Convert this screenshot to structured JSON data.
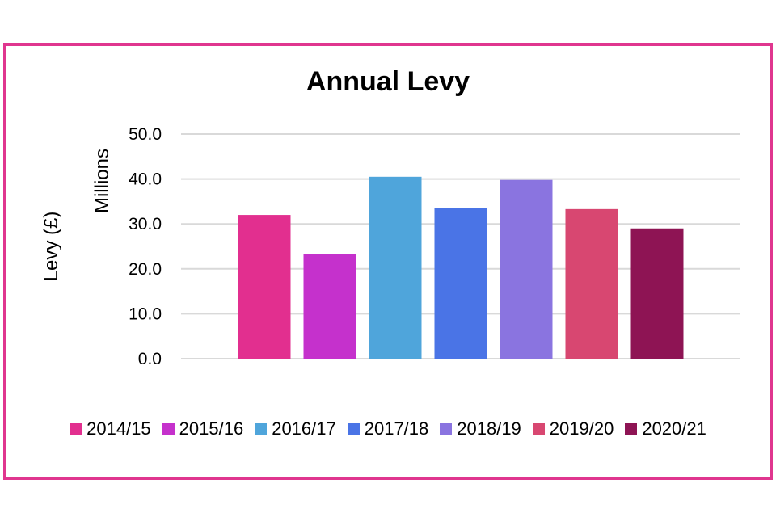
{
  "chart_data": {
    "type": "bar",
    "title": "Annual Levy",
    "ylabel": "Levy (£)",
    "yunit_label": "Millions",
    "xlabel": "",
    "ylim": [
      0,
      50
    ],
    "yticks": [
      "0.0",
      "10.0",
      "20.0",
      "30.0",
      "40.0",
      "50.0"
    ],
    "ytick_values": [
      0,
      10,
      20,
      30,
      40,
      50
    ],
    "grid": true,
    "legend_position": "bottom",
    "categories": [
      "2014/15",
      "2015/16",
      "2016/17",
      "2017/18",
      "2018/19",
      "2019/20",
      "2020/21"
    ],
    "values": [
      32.0,
      23.2,
      40.5,
      33.5,
      39.8,
      33.3,
      29.0
    ],
    "colors": [
      "#e22f8f",
      "#c531cc",
      "#4fa5db",
      "#4a74e6",
      "#8a74e0",
      "#d84771",
      "#8e1454"
    ]
  },
  "frame_color": "#e0368f",
  "grid_color": "#d9d9d9"
}
